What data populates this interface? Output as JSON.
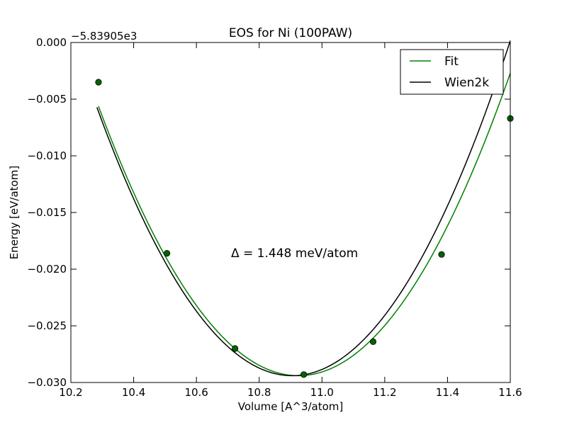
{
  "chart_data": {
    "type": "line",
    "title": "EOS for Ni (100PAW)",
    "xlabel": "Volume [A^3/atom]",
    "ylabel": "Energy [eV/atom]",
    "offset_text": "−5.83905e3",
    "annotation": "Δ = 1.448 meV/atom",
    "xlim": [
      10.2,
      11.6
    ],
    "ylim": [
      -0.03,
      0.0
    ],
    "x_ticks": [
      10.2,
      10.4,
      10.6,
      10.8,
      11.0,
      11.2,
      11.4,
      11.6
    ],
    "x_tick_labels": [
      "10.2",
      "10.4",
      "10.6",
      "10.8",
      "11.0",
      "11.2",
      "11.4",
      "11.6"
    ],
    "y_ticks": [
      0.0,
      -0.005,
      -0.01,
      -0.015,
      -0.02,
      -0.025,
      -0.03
    ],
    "y_tick_labels": [
      "0.000",
      "−0.005",
      "−0.010",
      "−0.015",
      "−0.020",
      "−0.025",
      "−0.030"
    ],
    "legend_position": "top-right",
    "grid": false,
    "series": [
      {
        "name": "Fit",
        "kind": "line",
        "color": "#008000",
        "model": "quadratic",
        "coefficients": {
          "a": 0.0586,
          "x0": 10.925,
          "y0": -0.0294
        },
        "x_range": [
          10.288,
          11.6
        ]
      },
      {
        "name": "Wien2k",
        "kind": "line",
        "color": "#000000",
        "model": "quadratic",
        "coefficients": {
          "a": 0.0612,
          "x0": 10.905,
          "y0": -0.0294
        },
        "x_range": [
          10.283,
          11.6
        ]
      },
      {
        "kind": "points",
        "color": "#006400",
        "x": [
          10.288,
          10.506,
          10.723,
          10.942,
          11.163,
          11.381,
          11.6
        ],
        "y": [
          -0.0035,
          -0.0186,
          -0.027,
          -0.0293,
          -0.0264,
          -0.0187,
          -0.0067
        ]
      }
    ]
  }
}
